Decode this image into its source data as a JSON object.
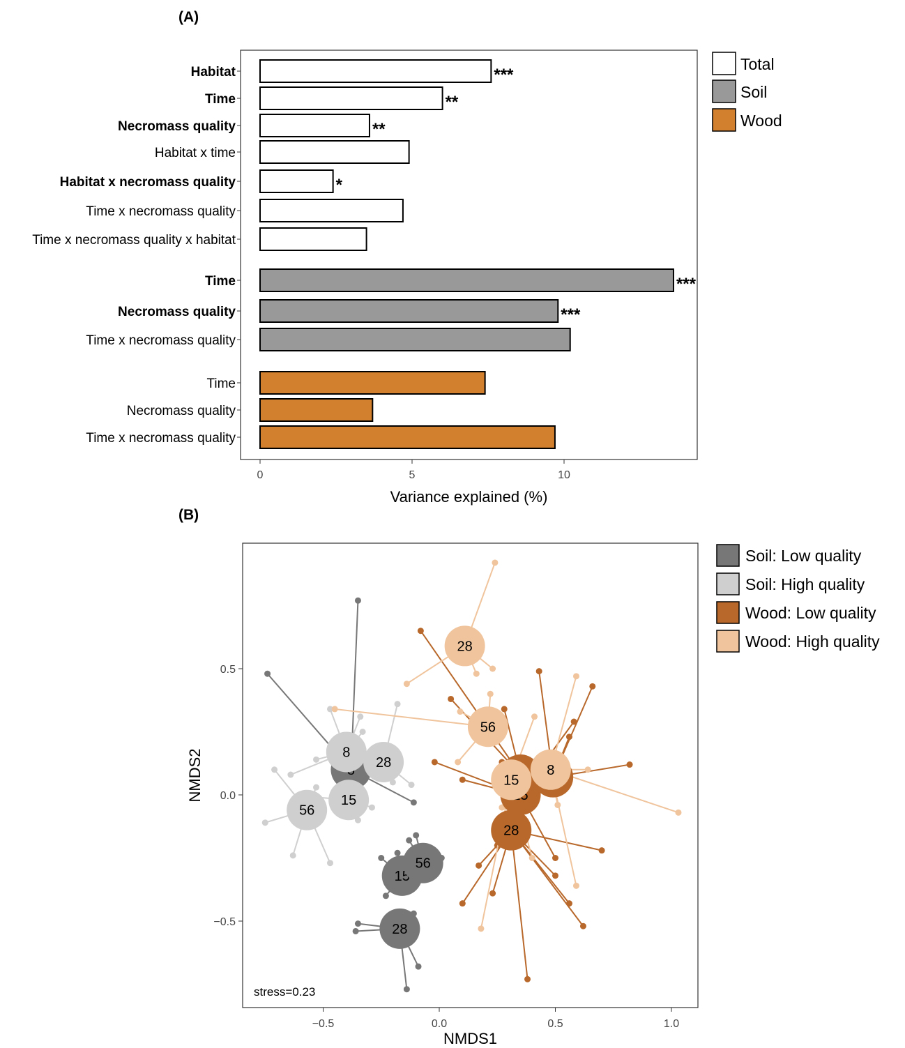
{
  "panel_a_label": "(A)",
  "panel_b_label": "(B)",
  "chart_data": [
    {
      "type": "bar",
      "orientation": "horizontal",
      "xlabel": "Variance explained (%)",
      "ylabel": "",
      "xlim": [
        0,
        14.5
      ],
      "xticks": [
        0,
        5,
        10
      ],
      "grid": false,
      "legend_position": "right",
      "legend": [
        {
          "label": "Total",
          "color": "#ffffff"
        },
        {
          "label": "Soil",
          "color": "#999999"
        },
        {
          "label": "Wood",
          "color": "#d27f2e"
        }
      ],
      "bars": [
        {
          "label": "Habitat",
          "group": "Total",
          "value": 7.6,
          "sig": "***",
          "bold": true
        },
        {
          "label": "Time",
          "group": "Total",
          "value": 6.0,
          "sig": "**",
          "bold": true
        },
        {
          "label": "Necromass quality",
          "group": "Total",
          "value": 3.6,
          "sig": "**",
          "bold": true
        },
        {
          "label": "Habitat x time",
          "group": "Total",
          "value": 4.9,
          "sig": "",
          "bold": false
        },
        {
          "label": "Habitat x necromass quality",
          "group": "Total",
          "value": 2.4,
          "sig": "*",
          "bold": true
        },
        {
          "label": "Time x necromass quality",
          "group": "Total",
          "value": 4.7,
          "sig": "",
          "bold": false
        },
        {
          "label": "Time x necromass quality x habitat",
          "group": "Total",
          "value": 3.5,
          "sig": "",
          "bold": false
        },
        {
          "label": "Time",
          "group": "Soil",
          "value": 13.6,
          "sig": "***",
          "bold": true
        },
        {
          "label": "Necromass quality",
          "group": "Soil",
          "value": 9.8,
          "sig": "***",
          "bold": true
        },
        {
          "label": "Time x necromass quality",
          "group": "Soil",
          "value": 10.2,
          "sig": "",
          "bold": false
        },
        {
          "label": "Time",
          "group": "Wood",
          "value": 7.4,
          "sig": "",
          "bold": false
        },
        {
          "label": "Necromass quality",
          "group": "Wood",
          "value": 3.7,
          "sig": "",
          "bold": false
        },
        {
          "label": "Time x necromass quality",
          "group": "Wood",
          "value": 9.7,
          "sig": "",
          "bold": false
        }
      ]
    },
    {
      "type": "scatter",
      "subtype": "nmds-spider",
      "xlabel": "NMDS1",
      "ylabel": "NMDS2",
      "xlim": [
        -0.85,
        1.12
      ],
      "ylim": [
        -0.82,
        0.99
      ],
      "xticks": [
        -0.5,
        0.0,
        0.5,
        1.0
      ],
      "xtick_labels": [
        "−0.5",
        "0.0",
        "0.5",
        "1.0"
      ],
      "yticks": [
        -0.5,
        0.0,
        0.5
      ],
      "ytick_labels": [
        "−0.5",
        "0.0",
        "0.5"
      ],
      "grid": false,
      "annotation": "stress=0.23",
      "legend_position": "right",
      "groups": [
        {
          "name": "Soil: Low quality",
          "color": "#777777",
          "clusters": [
            {
              "label": "8",
              "centroid": [
                -0.38,
                0.1
              ],
              "points": [
                [
                  -0.35,
                  0.77
                ],
                [
                  -0.74,
                  0.48
                ],
                [
                  -0.11,
                  -0.03
                ],
                [
                  -0.37,
                  0.12
                ]
              ]
            },
            {
              "label": "15",
              "centroid": [
                -0.16,
                -0.32
              ],
              "points": [
                [
                  -0.21,
                  -0.29
                ],
                [
                  -0.25,
                  -0.25
                ],
                [
                  -0.18,
                  -0.23
                ],
                [
                  -0.13,
                  -0.27
                ],
                [
                  -0.23,
                  -0.4
                ]
              ]
            },
            {
              "label": "56",
              "centroid": [
                -0.07,
                -0.27
              ],
              "points": [
                [
                  -0.03,
                  -0.26
                ],
                [
                  -0.1,
                  -0.16
                ],
                [
                  -0.11,
                  -0.35
                ],
                [
                  0.01,
                  -0.25
                ],
                [
                  -0.13,
                  -0.18
                ]
              ]
            },
            {
              "label": "28",
              "centroid": [
                -0.17,
                -0.53
              ],
              "points": [
                [
                  -0.35,
                  -0.51
                ],
                [
                  -0.36,
                  -0.54
                ],
                [
                  -0.09,
                  -0.68
                ],
                [
                  -0.14,
                  -0.77
                ],
                [
                  -0.11,
                  -0.47
                ]
              ]
            }
          ]
        },
        {
          "name": "Soil: High quality",
          "color": "#cfcfcf",
          "clusters": [
            {
              "label": "8",
              "centroid": [
                -0.4,
                0.17
              ],
              "points": [
                [
                  -0.47,
                  0.34
                ],
                [
                  -0.34,
                  0.31
                ],
                [
                  -0.64,
                  0.08
                ],
                [
                  -0.53,
                  0.14
                ],
                [
                  -0.33,
                  0.25
                ]
              ]
            },
            {
              "label": "28",
              "centroid": [
                -0.24,
                0.13
              ],
              "points": [
                [
                  -0.18,
                  0.36
                ],
                [
                  -0.2,
                  0.05
                ],
                [
                  -0.12,
                  0.04
                ],
                [
                  -0.22,
                  0.07
                ]
              ]
            },
            {
              "label": "15",
              "centroid": [
                -0.39,
                -0.02
              ],
              "points": [
                [
                  -0.52,
                  -0.01
                ],
                [
                  -0.42,
                  -0.07
                ],
                [
                  -0.29,
                  -0.05
                ],
                [
                  -0.35,
                  -0.1
                ]
              ]
            },
            {
              "label": "56",
              "centroid": [
                -0.57,
                -0.06
              ],
              "points": [
                [
                  -0.71,
                  0.1
                ],
                [
                  -0.75,
                  -0.11
                ],
                [
                  -0.63,
                  -0.24
                ],
                [
                  -0.47,
                  -0.27
                ],
                [
                  -0.53,
                  0.03
                ]
              ]
            }
          ]
        },
        {
          "name": "Wood: Low quality",
          "color": "#b8682a",
          "clusters": [
            {
              "label": "8",
              "centroid": [
                0.35,
                0.08
              ],
              "points": [
                [
                  -0.08,
                  0.65
                ],
                [
                  0.05,
                  0.38
                ],
                [
                  0.28,
                  0.34
                ],
                [
                  0.45,
                  0.14
                ],
                [
                  0.27,
                  0.13
                ]
              ]
            },
            {
              "label": "15",
              "centroid": [
                0.35,
                0.0
              ],
              "points": [
                [
                  -0.02,
                  0.13
                ],
                [
                  0.1,
                  0.06
                ],
                [
                  0.58,
                  0.29
                ],
                [
                  0.25,
                  -0.2
                ],
                [
                  0.5,
                  -0.25
                ]
              ]
            },
            {
              "label": "56",
              "centroid": [
                0.49,
                0.07
              ],
              "points": [
                [
                  0.43,
                  0.49
                ],
                [
                  0.66,
                  0.43
                ],
                [
                  0.82,
                  0.12
                ],
                [
                  0.56,
                  0.23
                ],
                [
                  0.52,
                  0.02
                ]
              ]
            },
            {
              "label": "28",
              "centroid": [
                0.31,
                -0.14
              ],
              "points": [
                [
                  0.1,
                  -0.43
                ],
                [
                  0.17,
                  -0.28
                ],
                [
                  0.23,
                  -0.39
                ],
                [
                  0.38,
                  -0.73
                ],
                [
                  0.62,
                  -0.52
                ],
                [
                  0.56,
                  -0.43
                ],
                [
                  0.7,
                  -0.22
                ],
                [
                  0.5,
                  -0.32
                ]
              ]
            }
          ]
        },
        {
          "name": "Wood: High quality",
          "color": "#f0c49c",
          "clusters": [
            {
              "label": "28",
              "centroid": [
                0.11,
                0.59
              ],
              "points": [
                [
                  0.24,
                  0.92
                ],
                [
                  0.23,
                  0.5
                ],
                [
                  0.16,
                  0.48
                ],
                [
                  -0.14,
                  0.44
                ]
              ]
            },
            {
              "label": "56",
              "centroid": [
                0.21,
                0.27
              ],
              "points": [
                [
                  0.22,
                  0.4
                ],
                [
                  0.09,
                  0.33
                ],
                [
                  0.08,
                  0.13
                ],
                [
                  -0.45,
                  0.34
                ],
                [
                  0.25,
                  0.23
                ]
              ]
            },
            {
              "label": "15",
              "centroid": [
                0.31,
                0.06
              ],
              "points": [
                [
                  0.18,
                  -0.53
                ],
                [
                  0.41,
                  0.31
                ],
                [
                  0.4,
                  -0.25
                ],
                [
                  0.27,
                  -0.05
                ]
              ]
            },
            {
              "label": "8",
              "centroid": [
                0.48,
                0.1
              ],
              "points": [
                [
                  0.59,
                  0.47
                ],
                [
                  1.03,
                  -0.07
                ],
                [
                  0.59,
                  -0.36
                ],
                [
                  0.64,
                  0.1
                ],
                [
                  0.51,
                  -0.04
                ]
              ]
            }
          ]
        }
      ]
    }
  ]
}
